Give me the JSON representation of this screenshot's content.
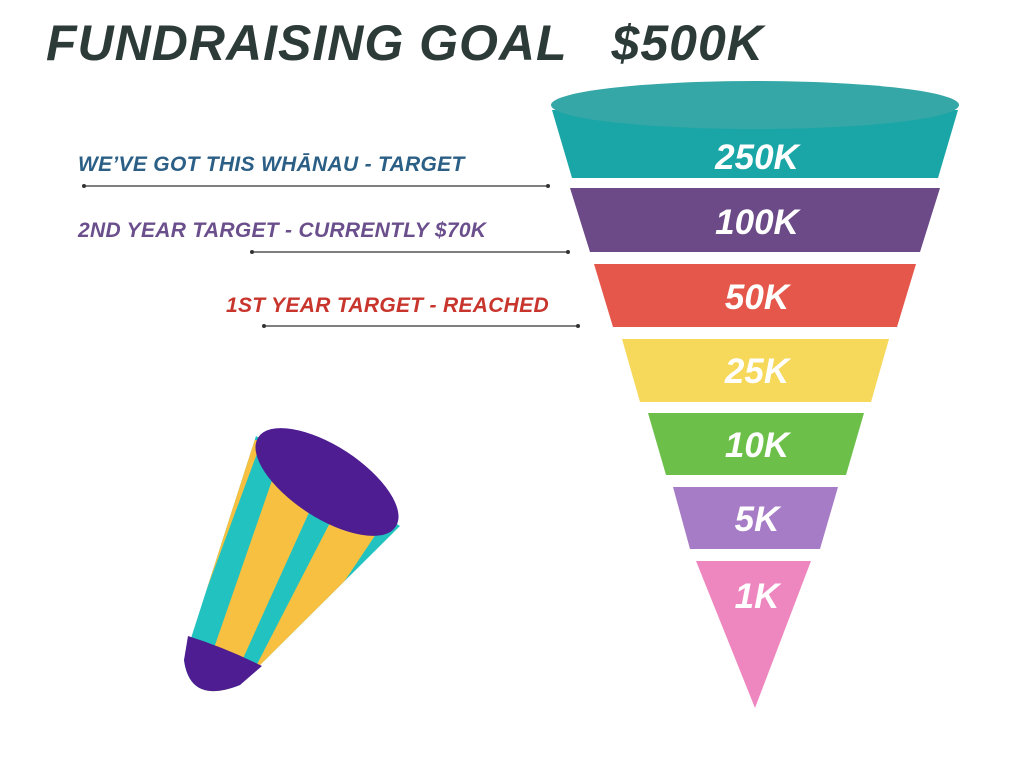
{
  "title": {
    "main": "FUNDRAISING GOAL",
    "amount": "$500K"
  },
  "targets": [
    {
      "label": "WE’VE GOT THIS WHĀNAU - TARGET",
      "color": "#2b5f86"
    },
    {
      "label": "2ND YEAR TARGET - CURRENTLY $70K",
      "color": "#6a4f8c"
    },
    {
      "label": "1ST YEAR TARGET - REACHED",
      "color": "#c8352c"
    }
  ],
  "funnel": {
    "tiers": [
      {
        "label": "250K",
        "color": "#1aa6a6"
      },
      {
        "label": "100K",
        "color": "#6b4a87"
      },
      {
        "label": "50K",
        "color": "#e5574a"
      },
      {
        "label": "25K",
        "color": "#f6d85a"
      },
      {
        "label": "10K",
        "color": "#6cc04a"
      },
      {
        "label": "5K",
        "color": "#a77cc6"
      },
      {
        "label": "1K",
        "color": "#ee86bf"
      }
    ],
    "rim_color": "#36a7a7"
  },
  "party_horn": {
    "stripe_colors": [
      "#22c2c0",
      "#f7c040"
    ],
    "cap_color": "#4d1d91"
  }
}
